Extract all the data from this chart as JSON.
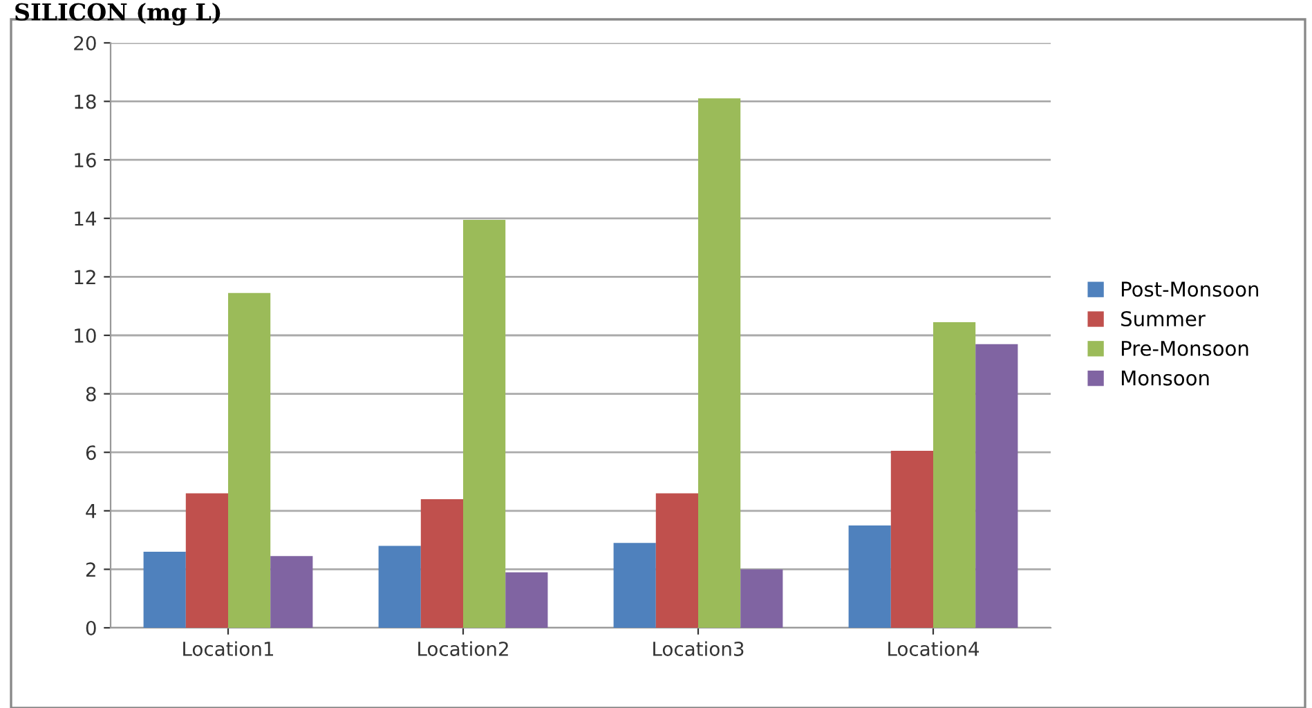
{
  "chart_data": {
    "type": "bar",
    "title": "SILICON (mg L)",
    "categories": [
      "Location1",
      "Location2",
      "Location3",
      "Location4"
    ],
    "series": [
      {
        "name": "Post-Monsoon",
        "color": "#4f81bd",
        "values": [
          2.6,
          2.8,
          2.9,
          3.5
        ]
      },
      {
        "name": "Summer",
        "color": "#c0504d",
        "values": [
          4.6,
          4.4,
          4.6,
          6.05
        ]
      },
      {
        "name": "Pre-Monsoon",
        "color": "#9bbb59",
        "values": [
          11.45,
          13.95,
          18.1,
          10.45
        ]
      },
      {
        "name": "Monsoon",
        "color": "#8064a2",
        "values": [
          2.45,
          1.9,
          2.0,
          9.7
        ]
      }
    ],
    "ylim": [
      0,
      20
    ],
    "yticks": [
      0,
      2,
      4,
      6,
      8,
      10,
      12,
      14,
      16,
      18,
      20
    ],
    "grid": "y",
    "legend": "right"
  }
}
